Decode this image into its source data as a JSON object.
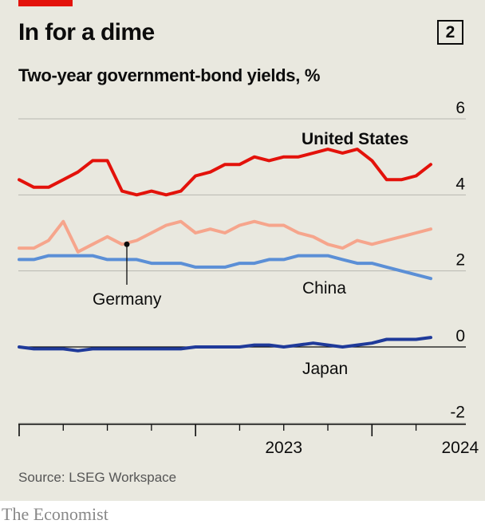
{
  "header": {
    "title": "In for a dime",
    "badge": "2",
    "subtitle": "Two-year government-bond yields, %"
  },
  "source": "Source: LSEG Workspace",
  "brand": "The Economist",
  "colors": {
    "us": "#e3120b",
    "germany": "#f6a58c",
    "china": "#5b8fd6",
    "japan": "#1f3a9a",
    "grid": "#b7b7b0",
    "axis": "#0c0c0c"
  },
  "chart_data": {
    "type": "line",
    "xlabel": "",
    "ylabel": "",
    "y_ticks": [
      "6",
      "4",
      "2",
      "0",
      "-2"
    ],
    "ylim": [
      -2,
      6
    ],
    "x_tick_labels": [
      "2023",
      "2024"
    ],
    "xlim": [
      "2022-01",
      "2024-06"
    ],
    "series": [
      {
        "name": "United States",
        "key": "us",
        "x": [
          "2022-01",
          "2022-02",
          "2022-03",
          "2022-04",
          "2022-05",
          "2022-06",
          "2022-07",
          "2022-08",
          "2022-09",
          "2022-10",
          "2022-11",
          "2022-12",
          "2023-01",
          "2023-02",
          "2023-03",
          "2023-04",
          "2023-05",
          "2023-06",
          "2023-07",
          "2023-08",
          "2023-09",
          "2023-10",
          "2023-11",
          "2023-12",
          "2024-01",
          "2024-02",
          "2024-03",
          "2024-04",
          "2024-05"
        ],
        "y": [
          4.4,
          4.2,
          4.2,
          4.4,
          4.6,
          4.9,
          4.9,
          4.1,
          4.0,
          4.1,
          4.0,
          4.1,
          4.5,
          4.6,
          4.8,
          4.8,
          5.0,
          4.9,
          5.0,
          5.0,
          5.1,
          5.2,
          5.1,
          5.2,
          4.9,
          4.4,
          4.4,
          4.5,
          4.8
        ]
      },
      {
        "name": "Germany",
        "key": "germany",
        "x": [
          "2022-01",
          "2022-02",
          "2022-03",
          "2022-04",
          "2022-05",
          "2022-06",
          "2022-07",
          "2022-08",
          "2022-09",
          "2022-10",
          "2022-11",
          "2022-12",
          "2023-01",
          "2023-02",
          "2023-03",
          "2023-04",
          "2023-05",
          "2023-06",
          "2023-07",
          "2023-08",
          "2023-09",
          "2023-10",
          "2023-11",
          "2023-12",
          "2024-01",
          "2024-02",
          "2024-03",
          "2024-04",
          "2024-05"
        ],
        "y": [
          2.6,
          2.6,
          2.8,
          3.3,
          2.5,
          2.7,
          2.9,
          2.7,
          2.8,
          3.0,
          3.2,
          3.3,
          3.0,
          3.1,
          3.0,
          3.2,
          3.3,
          3.2,
          3.2,
          3.0,
          2.9,
          2.7,
          2.6,
          2.8,
          2.7,
          2.8,
          2.9,
          3.0,
          3.1
        ]
      },
      {
        "name": "China",
        "key": "china",
        "x": [
          "2022-01",
          "2022-02",
          "2022-03",
          "2022-04",
          "2022-05",
          "2022-06",
          "2022-07",
          "2022-08",
          "2022-09",
          "2022-10",
          "2022-11",
          "2022-12",
          "2023-01",
          "2023-02",
          "2023-03",
          "2023-04",
          "2023-05",
          "2023-06",
          "2023-07",
          "2023-08",
          "2023-09",
          "2023-10",
          "2023-11",
          "2023-12",
          "2024-01",
          "2024-02",
          "2024-03",
          "2024-04",
          "2024-05"
        ],
        "y": [
          2.3,
          2.3,
          2.4,
          2.4,
          2.4,
          2.4,
          2.3,
          2.3,
          2.3,
          2.2,
          2.2,
          2.2,
          2.1,
          2.1,
          2.1,
          2.2,
          2.2,
          2.3,
          2.3,
          2.4,
          2.4,
          2.4,
          2.3,
          2.2,
          2.2,
          2.1,
          2.0,
          1.9,
          1.8
        ]
      },
      {
        "name": "Japan",
        "key": "japan",
        "x": [
          "2022-01",
          "2022-02",
          "2022-03",
          "2022-04",
          "2022-05",
          "2022-06",
          "2022-07",
          "2022-08",
          "2022-09",
          "2022-10",
          "2022-11",
          "2022-12",
          "2023-01",
          "2023-02",
          "2023-03",
          "2023-04",
          "2023-05",
          "2023-06",
          "2023-07",
          "2023-08",
          "2023-09",
          "2023-10",
          "2023-11",
          "2023-12",
          "2024-01",
          "2024-02",
          "2024-03",
          "2024-04",
          "2024-05"
        ],
        "y": [
          0.0,
          -0.05,
          -0.05,
          -0.05,
          -0.1,
          -0.05,
          -0.05,
          -0.05,
          -0.05,
          -0.05,
          -0.05,
          -0.05,
          0.0,
          0.0,
          0.0,
          0.0,
          0.05,
          0.05,
          0.0,
          0.05,
          0.1,
          0.05,
          0.0,
          0.05,
          0.1,
          0.2,
          0.2,
          0.2,
          0.25
        ]
      }
    ]
  }
}
